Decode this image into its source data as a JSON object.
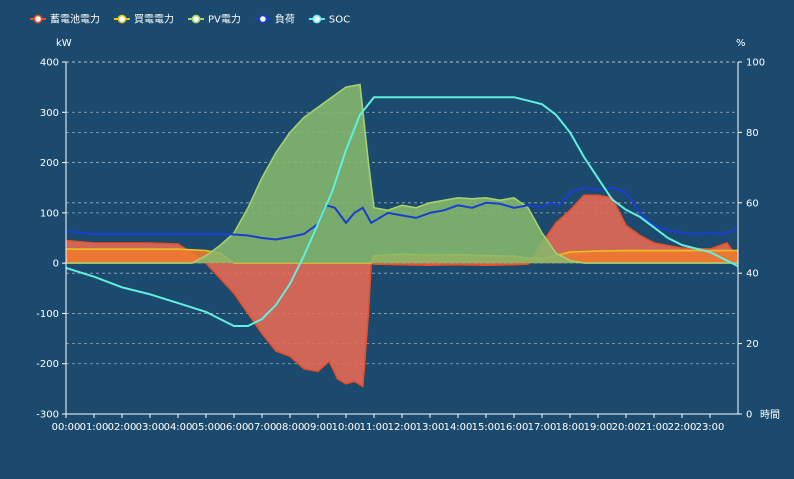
{
  "chart_data": {
    "type": "area",
    "yunit_left": "kW",
    "yunit_right": "%",
    "xunit": "時間",
    "x_ticks": [
      "00:00",
      "01:00",
      "02:00",
      "03:00",
      "04:00",
      "05:00",
      "06:00",
      "07:00",
      "08:00",
      "09:00",
      "10:00",
      "11:00",
      "12:00",
      "13:00",
      "14:00",
      "15:00",
      "16:00",
      "17:00",
      "18:00",
      "19:00",
      "20:00",
      "21:00",
      "22:00",
      "23:00"
    ],
    "ylim_left": [
      -300,
      400
    ],
    "yticks_left": [
      400,
      300,
      200,
      100,
      0,
      -100,
      -200,
      -300
    ],
    "ylim_right": [
      0,
      100
    ],
    "yticks_right": [
      100,
      80,
      60,
      40,
      20,
      0
    ],
    "legend_position": "top-left",
    "series": [
      {
        "name": "蓄電池電力",
        "axis": "left",
        "kind": "area",
        "color": "#e8502a",
        "fill": "#e86a55",
        "points": [
          [
            0,
            45
          ],
          [
            1,
            40
          ],
          [
            2,
            40
          ],
          [
            3,
            40
          ],
          [
            4,
            38
          ],
          [
            4.5,
            20
          ],
          [
            5,
            0
          ],
          [
            5.5,
            -30
          ],
          [
            6,
            -60
          ],
          [
            6.5,
            -100
          ],
          [
            7,
            -140
          ],
          [
            7.5,
            -175
          ],
          [
            8,
            -185
          ],
          [
            8.5,
            -210
          ],
          [
            9,
            -215
          ],
          [
            9.4,
            -195
          ],
          [
            9.7,
            -230
          ],
          [
            10,
            -240
          ],
          [
            10.3,
            -235
          ],
          [
            10.6,
            -245
          ],
          [
            10.8,
            -100
          ],
          [
            10.9,
            0
          ],
          [
            11,
            -2
          ],
          [
            12,
            -3
          ],
          [
            13,
            -4
          ],
          [
            14,
            -3
          ],
          [
            15,
            -4
          ],
          [
            16,
            -3
          ],
          [
            16.5,
            -2
          ],
          [
            17,
            40
          ],
          [
            17.5,
            80
          ],
          [
            18,
            105
          ],
          [
            18.5,
            135
          ],
          [
            19,
            135
          ],
          [
            19.5,
            130
          ],
          [
            20,
            75
          ],
          [
            20.5,
            55
          ],
          [
            21,
            40
          ],
          [
            22,
            30
          ],
          [
            23,
            28
          ],
          [
            23.6,
            40
          ],
          [
            24,
            10
          ]
        ]
      },
      {
        "name": "買電電力",
        "axis": "left",
        "kind": "area",
        "color": "#e8c020",
        "fill": "#f07a30",
        "points": [
          [
            0,
            28
          ],
          [
            1,
            28
          ],
          [
            2,
            28
          ],
          [
            3,
            28
          ],
          [
            4,
            28
          ],
          [
            5,
            25
          ],
          [
            5.5,
            20
          ],
          [
            6,
            0
          ],
          [
            10.9,
            0
          ],
          [
            11,
            15
          ],
          [
            12,
            18
          ],
          [
            13,
            16
          ],
          [
            14,
            17
          ],
          [
            15,
            15
          ],
          [
            16,
            14
          ],
          [
            16.5,
            10
          ],
          [
            17,
            8
          ],
          [
            17.5,
            15
          ],
          [
            18,
            22
          ],
          [
            19,
            24
          ],
          [
            20,
            25
          ],
          [
            21,
            25
          ],
          [
            22,
            25
          ],
          [
            23,
            25
          ],
          [
            24,
            25
          ]
        ]
      },
      {
        "name": "PV電力",
        "axis": "left",
        "kind": "area",
        "color": "#a8d070",
        "fill": "#86b86c",
        "points": [
          [
            0,
            0
          ],
          [
            4.5,
            0
          ],
          [
            5,
            15
          ],
          [
            5.5,
            35
          ],
          [
            6,
            60
          ],
          [
            6.5,
            110
          ],
          [
            7,
            170
          ],
          [
            7.5,
            220
          ],
          [
            8,
            260
          ],
          [
            8.5,
            290
          ],
          [
            9,
            310
          ],
          [
            9.5,
            330
          ],
          [
            10,
            350
          ],
          [
            10.5,
            355
          ],
          [
            10.8,
            200
          ],
          [
            11,
            110
          ],
          [
            11.5,
            105
          ],
          [
            12,
            115
          ],
          [
            12.5,
            110
          ],
          [
            13,
            120
          ],
          [
            13.5,
            125
          ],
          [
            14,
            130
          ],
          [
            14.5,
            128
          ],
          [
            15,
            130
          ],
          [
            15.5,
            125
          ],
          [
            16,
            130
          ],
          [
            16.5,
            110
          ],
          [
            17,
            60
          ],
          [
            17.5,
            20
          ],
          [
            18,
            5
          ],
          [
            18.5,
            0
          ],
          [
            24,
            0
          ]
        ]
      },
      {
        "name": "負荷",
        "axis": "left",
        "kind": "line",
        "color": "#1a3fd0",
        "points": [
          [
            0,
            65
          ],
          [
            0.5,
            60
          ],
          [
            1,
            58
          ],
          [
            2,
            58
          ],
          [
            3,
            58
          ],
          [
            4,
            58
          ],
          [
            5,
            58
          ],
          [
            5.5,
            58
          ],
          [
            6,
            57
          ],
          [
            6.5,
            55
          ],
          [
            7,
            50
          ],
          [
            7.5,
            47
          ],
          [
            8,
            52
          ],
          [
            8.5,
            58
          ],
          [
            9,
            78
          ],
          [
            9.3,
            115
          ],
          [
            9.6,
            110
          ],
          [
            9.8,
            95
          ],
          [
            10,
            80
          ],
          [
            10.3,
            100
          ],
          [
            10.6,
            110
          ],
          [
            10.9,
            80
          ],
          [
            11.2,
            90
          ],
          [
            11.5,
            100
          ],
          [
            12,
            95
          ],
          [
            12.5,
            90
          ],
          [
            13,
            100
          ],
          [
            13.5,
            105
          ],
          [
            14,
            115
          ],
          [
            14.5,
            110
          ],
          [
            15,
            120
          ],
          [
            15.5,
            118
          ],
          [
            16,
            110
          ],
          [
            16.5,
            115
          ],
          [
            17,
            110
          ],
          [
            17.3,
            120
          ],
          [
            17.6,
            115
          ],
          [
            18,
            140
          ],
          [
            18.5,
            150
          ],
          [
            19,
            145
          ],
          [
            19.5,
            150
          ],
          [
            20,
            140
          ],
          [
            20.5,
            100
          ],
          [
            21,
            75
          ],
          [
            21.5,
            65
          ],
          [
            22,
            60
          ],
          [
            22.5,
            58
          ],
          [
            23,
            60
          ],
          [
            23.5,
            58
          ],
          [
            24,
            70
          ]
        ]
      },
      {
        "name": "SOC",
        "axis": "right",
        "kind": "line",
        "color": "#60f0e0",
        "points": [
          [
            0,
            41.5
          ],
          [
            1,
            39
          ],
          [
            2,
            36
          ],
          [
            3,
            34
          ],
          [
            4,
            31.5
          ],
          [
            5,
            29
          ],
          [
            5.5,
            27
          ],
          [
            6,
            25
          ],
          [
            6.5,
            25
          ],
          [
            7,
            27
          ],
          [
            7.5,
            31
          ],
          [
            8,
            37
          ],
          [
            8.5,
            45
          ],
          [
            9,
            54
          ],
          [
            9.5,
            63
          ],
          [
            10,
            75
          ],
          [
            10.5,
            85
          ],
          [
            11,
            90
          ],
          [
            12,
            90
          ],
          [
            13,
            90
          ],
          [
            14,
            90
          ],
          [
            15,
            90
          ],
          [
            16,
            90
          ],
          [
            16.5,
            89
          ],
          [
            17,
            88
          ],
          [
            17.5,
            85
          ],
          [
            18,
            80
          ],
          [
            18.5,
            73
          ],
          [
            19,
            67
          ],
          [
            19.5,
            61
          ],
          [
            20,
            58
          ],
          [
            20.5,
            56
          ],
          [
            21,
            53
          ],
          [
            21.5,
            50
          ],
          [
            22,
            48
          ],
          [
            22.5,
            47
          ],
          [
            23,
            46
          ],
          [
            23.5,
            44
          ],
          [
            24,
            42
          ]
        ]
      }
    ]
  }
}
